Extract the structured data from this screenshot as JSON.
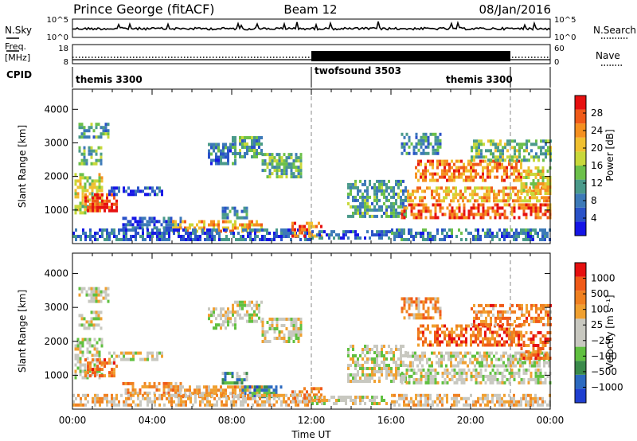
{
  "header": {
    "station": "Prince George (fitACF)",
    "beam": "Beam 12",
    "date": "08/Jan/2016"
  },
  "noise_panel": {
    "left_label": "N.Sky",
    "left_ticks": [
      "10^5",
      "10^0"
    ],
    "right_label": "N.Search",
    "right_ticks": [
      "10^5",
      "10^0"
    ]
  },
  "freq_panel": {
    "left_label_1": "Freq.",
    "left_label_2": "[MHz]",
    "left_ticks": [
      "18",
      "8"
    ],
    "right_label": "Nave",
    "right_ticks": [
      "60",
      "0"
    ]
  },
  "cpid_panel": {
    "label": "CPID",
    "segments": [
      {
        "name": "themis 3300",
        "start_hour": 0,
        "end_hour": 12
      },
      {
        "name": "twofsound 3503",
        "start_hour": 12,
        "end_hour": 22
      },
      {
        "name": "themis 3300",
        "start_hour": 22,
        "end_hour": 24
      }
    ],
    "label_texts": [
      "themis 3300",
      "twofsound 3503",
      "themis 3300"
    ]
  },
  "chart_data": [
    {
      "type": "heatmap",
      "title": "",
      "xlabel": "",
      "ylabel": "Slant Range [km]",
      "x_ticks": [
        "00:00",
        "04:00",
        "08:00",
        "12:00",
        "16:00",
        "20:00",
        "00:00"
      ],
      "y_ticks": [
        "1000",
        "2000",
        "3000",
        "4000"
      ],
      "ylim": [
        0,
        4600
      ],
      "colorbar": {
        "label": "Power [dB]",
        "ticks": [
          "28",
          "24",
          "20",
          "16",
          "12",
          "8",
          "4"
        ],
        "colors": [
          "#1515e6",
          "#2a52c8",
          "#3d7ab8",
          "#4a9a8a",
          "#6cc04a",
          "#c8d83a",
          "#f0c030",
          "#f59020",
          "#f05a18",
          "#e61010"
        ]
      },
      "regions": [
        {
          "t0": 0.1,
          "t1": 1.5,
          "r0": 900,
          "r1": 2100,
          "level": 0.55
        },
        {
          "t0": 0.6,
          "t1": 2.2,
          "r0": 950,
          "r1": 1500,
          "level": 0.9
        },
        {
          "t0": 0.3,
          "t1": 1.4,
          "r0": 2400,
          "r1": 2900,
          "level": 0.4
        },
        {
          "t0": 0.3,
          "t1": 1.8,
          "r0": 3200,
          "r1": 3600,
          "level": 0.35
        },
        {
          "t0": 1.8,
          "t1": 4.5,
          "r0": 1500,
          "r1": 1700,
          "level": 0.15
        },
        {
          "t0": 2.5,
          "t1": 5.5,
          "r0": 500,
          "r1": 800,
          "level": 0.2
        },
        {
          "t0": 5.0,
          "t1": 9.5,
          "r0": 350,
          "r1": 700,
          "level": 0.7
        },
        {
          "t0": 0.0,
          "t1": 12.0,
          "r0": 150,
          "r1": 450,
          "level": 0.2
        },
        {
          "t0": 6.8,
          "t1": 8.2,
          "r0": 2400,
          "r1": 3000,
          "level": 0.25
        },
        {
          "t0": 8.0,
          "t1": 9.5,
          "r0": 2600,
          "r1": 3200,
          "level": 0.35
        },
        {
          "t0": 9.5,
          "t1": 11.5,
          "r0": 2000,
          "r1": 2700,
          "level": 0.4
        },
        {
          "t0": 7.5,
          "t1": 8.8,
          "r0": 800,
          "r1": 1100,
          "level": 0.3
        },
        {
          "t0": 11.0,
          "t1": 12.5,
          "r0": 250,
          "r1": 650,
          "level": 0.8
        },
        {
          "t0": 12.0,
          "t1": 16.0,
          "r0": 150,
          "r1": 400,
          "level": 0.2
        },
        {
          "t0": 13.8,
          "t1": 16.8,
          "r0": 800,
          "r1": 1900,
          "level": 0.35
        },
        {
          "t0": 16.5,
          "t1": 24.0,
          "r0": 800,
          "r1": 1200,
          "level": 0.85
        },
        {
          "t0": 16.8,
          "t1": 24.0,
          "r0": 1250,
          "r1": 1700,
          "level": 0.7
        },
        {
          "t0": 17.2,
          "t1": 22.5,
          "r0": 1900,
          "r1": 2500,
          "level": 0.78
        },
        {
          "t0": 20.0,
          "t1": 24.0,
          "r0": 2500,
          "r1": 3100,
          "level": 0.45
        },
        {
          "t0": 22.5,
          "t1": 24.0,
          "r0": 1500,
          "r1": 2300,
          "level": 0.6
        },
        {
          "t0": 16.0,
          "t1": 24.0,
          "r0": 150,
          "r1": 450,
          "level": 0.25
        },
        {
          "t0": 16.5,
          "t1": 18.5,
          "r0": 2700,
          "r1": 3300,
          "level": 0.3
        }
      ]
    },
    {
      "type": "heatmap",
      "title": "",
      "xlabel": "Time UT",
      "ylabel": "Slant Range [km]",
      "x_ticks": [
        "00:00",
        "04:00",
        "08:00",
        "12:00",
        "16:00",
        "20:00",
        "00:00"
      ],
      "y_ticks": [
        "1000",
        "2000",
        "3000",
        "4000"
      ],
      "ylim": [
        0,
        4600
      ],
      "colorbar": {
        "label": "Velocity [m s⁻¹]",
        "ticks": [
          "1000",
          "500",
          "100",
          "25",
          "−25",
          "−100",
          "−500",
          "−1000"
        ],
        "colors": [
          "#1f3fd0",
          "#2c6ac0",
          "#3a8a4a",
          "#60c040",
          "#c8c8c0",
          "#c8c8c0",
          "#f0a030",
          "#f08020",
          "#f05a18",
          "#e61010"
        ]
      },
      "regions": [
        {
          "t0": 0.1,
          "t1": 1.5,
          "r0": 900,
          "r1": 2100,
          "level": 0.5
        },
        {
          "t0": 0.6,
          "t1": 2.2,
          "r0": 950,
          "r1": 1500,
          "level": 0.75
        },
        {
          "t0": 0.3,
          "t1": 1.4,
          "r0": 2400,
          "r1": 2900,
          "level": 0.5
        },
        {
          "t0": 0.3,
          "t1": 1.8,
          "r0": 3200,
          "r1": 3600,
          "level": 0.5
        },
        {
          "t0": 1.8,
          "t1": 4.5,
          "r0": 1500,
          "r1": 1700,
          "level": 0.5
        },
        {
          "t0": 2.5,
          "t1": 5.5,
          "r0": 500,
          "r1": 800,
          "level": 0.7
        },
        {
          "t0": 5.0,
          "t1": 9.5,
          "r0": 350,
          "r1": 700,
          "level": 0.65
        },
        {
          "t0": 8.5,
          "t1": 10.5,
          "r0": 350,
          "r1": 700,
          "level": 0.25
        },
        {
          "t0": 0.0,
          "t1": 12.0,
          "r0": 150,
          "r1": 450,
          "level": 0.6
        },
        {
          "t0": 6.8,
          "t1": 8.2,
          "r0": 2400,
          "r1": 3000,
          "level": 0.5
        },
        {
          "t0": 8.0,
          "t1": 9.5,
          "r0": 2600,
          "r1": 3200,
          "level": 0.5
        },
        {
          "t0": 9.5,
          "t1": 11.5,
          "r0": 2000,
          "r1": 2700,
          "level": 0.5
        },
        {
          "t0": 7.5,
          "t1": 8.8,
          "r0": 800,
          "r1": 1100,
          "level": 0.3
        },
        {
          "t0": 11.0,
          "t1": 12.5,
          "r0": 250,
          "r1": 650,
          "level": 0.7
        },
        {
          "t0": 12.0,
          "t1": 16.0,
          "r0": 150,
          "r1": 400,
          "level": 0.5
        },
        {
          "t0": 13.8,
          "t1": 16.8,
          "r0": 800,
          "r1": 1900,
          "level": 0.5
        },
        {
          "t0": 16.5,
          "t1": 24.0,
          "r0": 800,
          "r1": 1200,
          "level": 0.5
        },
        {
          "t0": 16.8,
          "t1": 24.0,
          "r0": 1250,
          "r1": 1700,
          "level": 0.5
        },
        {
          "t0": 17.2,
          "t1": 22.5,
          "r0": 1900,
          "r1": 2500,
          "level": 0.8
        },
        {
          "t0": 20.0,
          "t1": 24.0,
          "r0": 2500,
          "r1": 3100,
          "level": 0.75
        },
        {
          "t0": 22.5,
          "t1": 24.0,
          "r0": 1500,
          "r1": 2300,
          "level": 0.8
        },
        {
          "t0": 16.0,
          "t1": 24.0,
          "r0": 150,
          "r1": 450,
          "level": 0.6
        },
        {
          "t0": 16.5,
          "t1": 18.5,
          "r0": 2700,
          "r1": 3300,
          "level": 0.7
        }
      ]
    }
  ]
}
